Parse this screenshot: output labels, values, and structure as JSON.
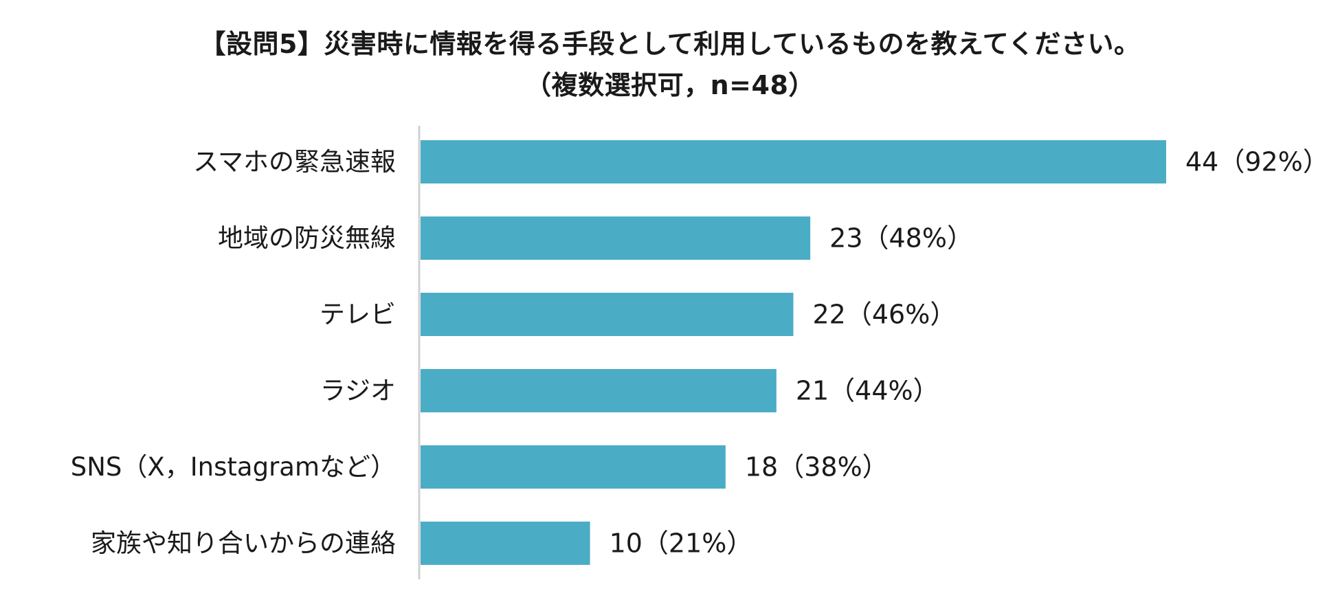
{
  "chart_data": {
    "type": "bar",
    "orientation": "horizontal",
    "title": "【設問5】災害時に情報を得る手段として利用しているものを教えてください。",
    "subtitle": "（複数選択可，n=48）",
    "categories": [
      "スマホの緊急速報",
      "地域の防災無線",
      "テレビ",
      "ラジオ",
      "SNS（X，Instagramなど）",
      "家族や知り合いからの連絡"
    ],
    "values": [
      44,
      23,
      22,
      21,
      18,
      10
    ],
    "data_labels": [
      "44（92%）",
      "23（48%）",
      "22（46%）",
      "21（44%）",
      "18（38%）",
      "10（21%）"
    ],
    "xlim": [
      0,
      44
    ],
    "bar_color": "#4BACC6",
    "axis_color": "#D0D0D0",
    "grid": false,
    "legend": "none"
  }
}
